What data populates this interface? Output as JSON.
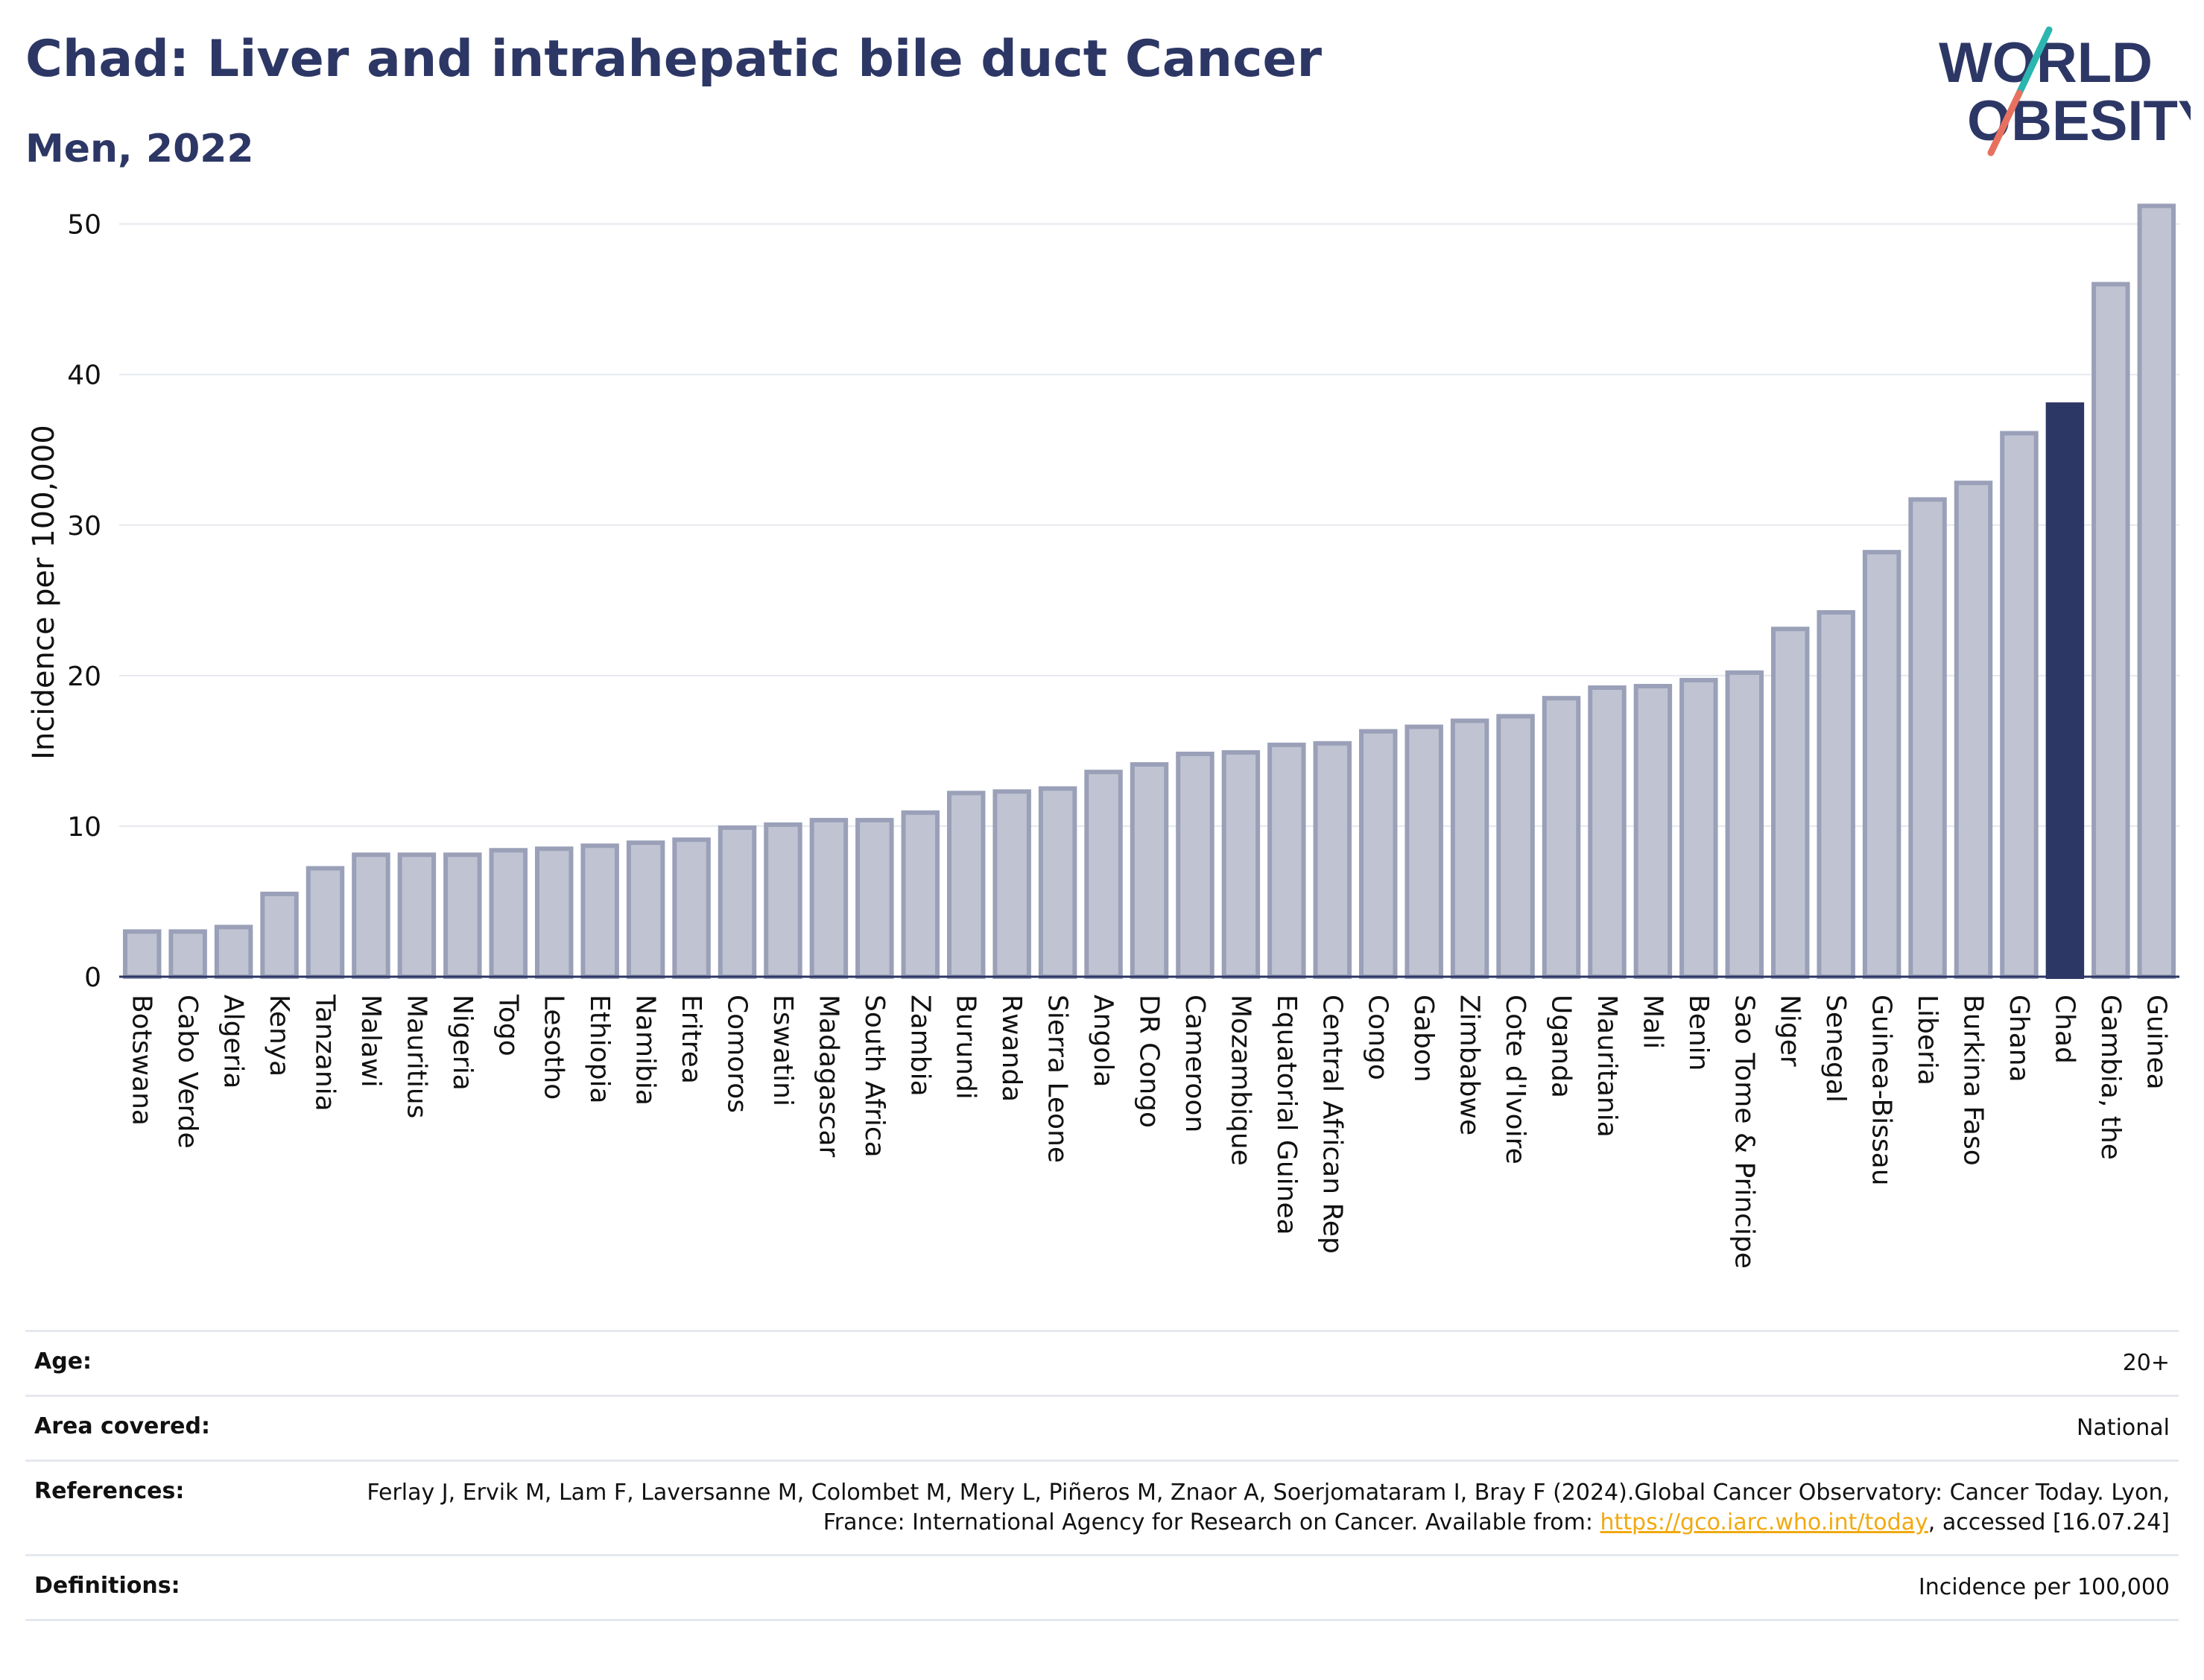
{
  "title": "Chad: Liver and intrahepatic bile duct Cancer",
  "subtitle": "Men, 2022",
  "logo": {
    "line1": "WORLD",
    "line2": "OBESITY"
  },
  "colors": {
    "highlight": "#2d3765",
    "bar_fill": "#c0c4d2",
    "bar_stroke": "#9aa0b8",
    "title": "#2d3765",
    "link": "#f2a90f"
  },
  "chart_data": {
    "type": "bar",
    "ylabel": "Incidence per 100,000",
    "xlabel": "",
    "ylim": [
      0,
      53
    ],
    "yticks": [
      0,
      10,
      20,
      30,
      40,
      50
    ],
    "grid": true,
    "highlight": "Chad",
    "categories": [
      "Botswana",
      "Cabo Verde",
      "Algeria",
      "Kenya",
      "Tanzania",
      "Malawi",
      "Mauritius",
      "Nigeria",
      "Togo",
      "Lesotho",
      "Ethiopia",
      "Namibia",
      "Eritrea",
      "Comoros",
      "Eswatini",
      "Madagascar",
      "South Africa",
      "Zambia",
      "Burundi",
      "Rwanda",
      "Sierra Leone",
      "Angola",
      "DR Congo",
      "Cameroon",
      "Mozambique",
      "Equatorial Guinea",
      "Central African Rep",
      "Congo",
      "Gabon",
      "Zimbabwe",
      "Cote d'Ivoire",
      "Uganda",
      "Mauritania",
      "Mali",
      "Benin",
      "Sao Tome & Principe",
      "Niger",
      "Senegal",
      "Guinea-Bissau",
      "Liberia",
      "Burkina Faso",
      "Ghana",
      "Chad",
      "Gambia, the",
      "Guinea"
    ],
    "values": [
      3.0,
      3.0,
      3.3,
      5.5,
      7.2,
      8.1,
      8.1,
      8.1,
      8.4,
      8.5,
      8.7,
      8.9,
      9.1,
      9.9,
      10.1,
      10.4,
      10.4,
      10.9,
      12.2,
      12.3,
      12.5,
      13.6,
      14.1,
      14.8,
      14.9,
      15.4,
      15.5,
      16.3,
      16.6,
      17.0,
      17.3,
      18.5,
      19.2,
      19.3,
      19.7,
      20.2,
      23.1,
      24.2,
      28.2,
      31.7,
      32.8,
      36.1,
      38.0,
      46.0,
      51.2
    ]
  },
  "meta": {
    "age_label": "Age:",
    "age_value": "20+",
    "area_label": "Area covered:",
    "area_value": "National",
    "ref_label": "References:",
    "ref_text": "Ferlay J, Ervik M, Lam F, Laversanne M, Colombet M, Mery L, Piñeros M, Znaor A, Soerjomataram I, Bray F (2024).Global Cancer Observatory: Cancer Today. Lyon, France: International Agency for Research on Cancer. Available from:",
    "ref_link": "https://gco.iarc.who.int/today",
    "ref_tail": ", accessed [16.07.24]",
    "def_label": "Definitions:",
    "def_value": "Incidence per 100,000"
  }
}
